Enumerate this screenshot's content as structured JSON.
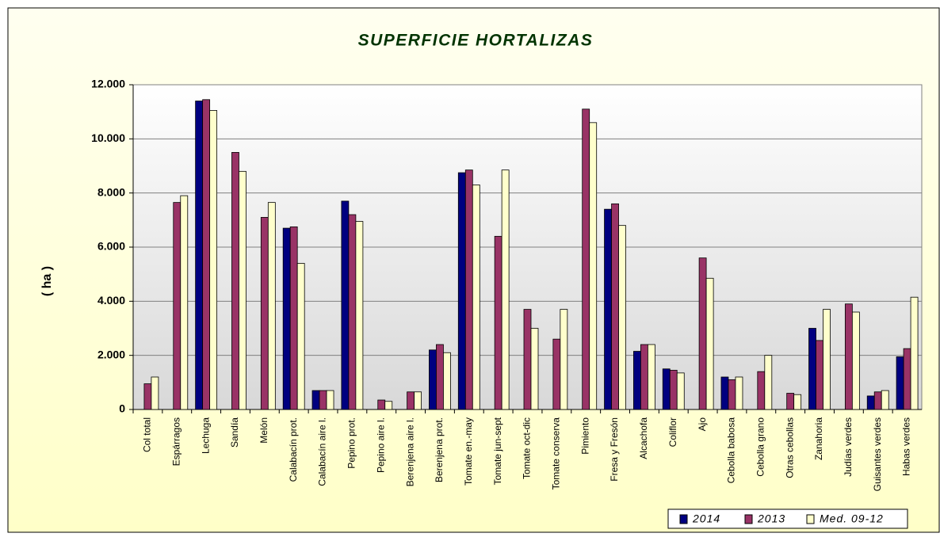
{
  "chart_data": {
    "type": "bar",
    "title": "SUPERFICIE HORTALIZAS",
    "y_label": "( ha )",
    "categories": [
      "Col total",
      "Espárragos",
      "Lechuga",
      "Sandía",
      "Melón",
      "Calabacín prot.",
      "Calabacín aire l.",
      "Pepino prot.",
      "Pepino aire l.",
      "Berenjena aire l.",
      "Berenjena prot.",
      "Tomate en.-may",
      "Tomate jun-sept",
      "Tomate oct-dic",
      "Tomate conserva",
      "Pimiento",
      "Fresa y Fresón",
      "Alcachofa",
      "Coliflor",
      "Ajo",
      "Cebolla babosa",
      "Cebolla grano",
      "Otras cebollas",
      "Zanahoria",
      "Judías verdes",
      "Guisantes verdes",
      "Habas verdes"
    ],
    "series": [
      {
        "name": "2014",
        "color": "#000080",
        "values": [
          null,
          null,
          11400,
          null,
          null,
          6700,
          700,
          7700,
          null,
          null,
          2200,
          8750,
          null,
          null,
          null,
          null,
          7400,
          2150,
          1500,
          null,
          1200,
          null,
          null,
          3000,
          null,
          500,
          1950
        ]
      },
      {
        "name": "2013",
        "color": "#993366",
        "values": [
          950,
          7650,
          11450,
          9500,
          7100,
          6750,
          700,
          7200,
          350,
          650,
          2400,
          8850,
          6400,
          3700,
          2600,
          11100,
          7600,
          2400,
          1450,
          5600,
          1100,
          1400,
          600,
          2550,
          3900,
          650,
          2250
        ]
      },
      {
        "name": "Med. 09-12",
        "color": "#FFFFCC",
        "values": [
          1200,
          7900,
          11050,
          8800,
          7650,
          5400,
          700,
          6950,
          300,
          650,
          2100,
          8300,
          8850,
          3000,
          3700,
          10600,
          6800,
          2400,
          1350,
          4850,
          1200,
          2000,
          550,
          3700,
          3600,
          700,
          4150
        ]
      }
    ],
    "ylim": [
      0,
      12000
    ],
    "yticks": [
      0,
      {
        "value": 2000,
        "label": "2.000"
      },
      {
        "value": 4000,
        "label": "4.000"
      },
      {
        "value": 6000,
        "label": "6.000"
      },
      {
        "value": 8000,
        "label": "8.000"
      },
      {
        "value": 10000,
        "label": "10.000"
      },
      {
        "value": 12000,
        "label": "12.000"
      }
    ],
    "grid": true,
    "legend": "bottom-right"
  }
}
